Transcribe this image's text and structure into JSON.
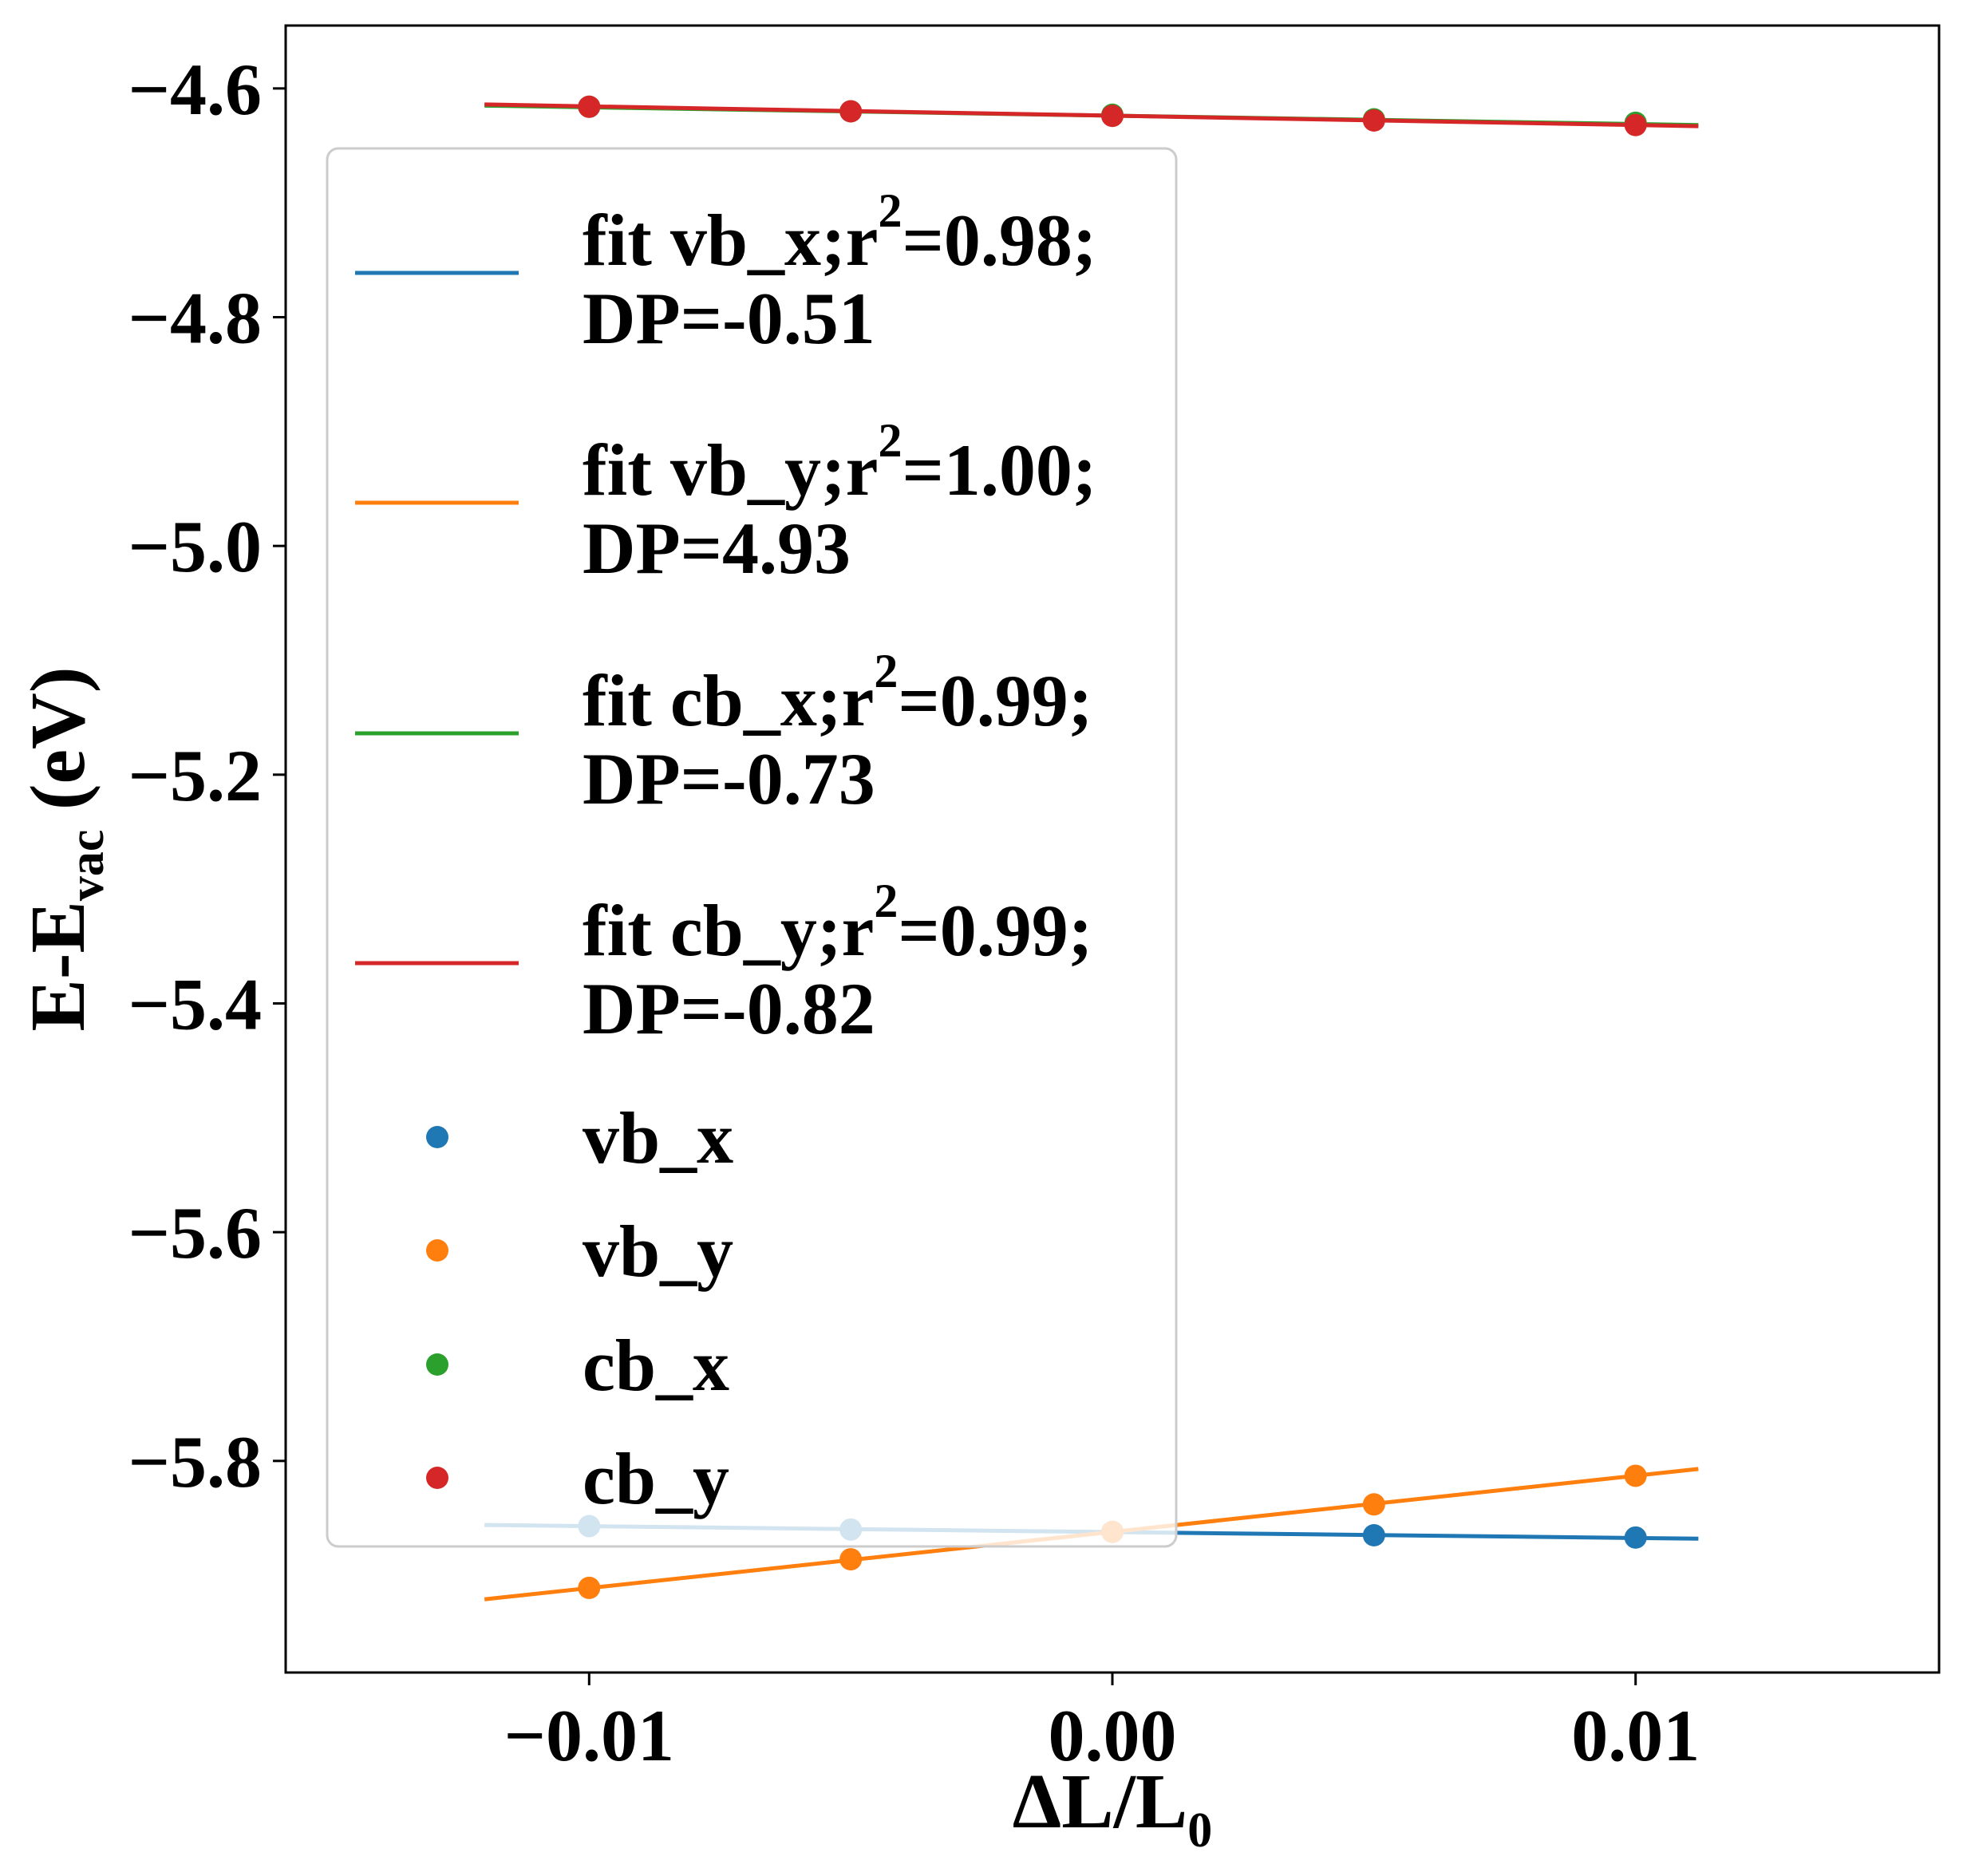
{
  "chart_data": {
    "type": "scatter",
    "xlabel": {
      "main": "ΔL/L",
      "sub": "0"
    },
    "ylabel": {
      "main": "E-E",
      "sub": "vac",
      "tail": " (eV)"
    },
    "xlim": [
      -0.0158,
      0.0158
    ],
    "ylim": [
      -5.985,
      -4.545
    ],
    "xticks": [
      {
        "value": -0.01,
        "label": "−0.01"
      },
      {
        "value": 0.0,
        "label": "0.00"
      },
      {
        "value": 0.01,
        "label": "0.01"
      }
    ],
    "yticks": [
      {
        "value": -4.6,
        "label": "−4.6"
      },
      {
        "value": -4.8,
        "label": "−4.8"
      },
      {
        "value": -5.0,
        "label": "−5.0"
      },
      {
        "value": -5.2,
        "label": "−5.2"
      },
      {
        "value": -5.4,
        "label": "−5.4"
      },
      {
        "value": -5.6,
        "label": "−5.6"
      },
      {
        "value": -5.8,
        "label": "−5.8"
      }
    ],
    "grid": false,
    "legend_position": "upper left",
    "x": [
      -0.01,
      -0.005,
      0.0,
      0.005,
      0.01
    ],
    "series": [
      {
        "key": "vb_x",
        "color": "#1f77b4",
        "name": "vb_x",
        "fit_line1": "fit vb_x;r",
        "fit_sup": "2",
        "fit_line1_tail": "=0.98;",
        "fit_line2": "DP=-0.51",
        "values": [
          -5.857,
          -5.86,
          -5.862,
          -5.865,
          -5.867
        ],
        "fit": {
          "x": [
            -0.012,
            0.0112
          ],
          "y": [
            -5.856,
            -5.868
          ]
        }
      },
      {
        "key": "vb_y",
        "color": "#ff7f0e",
        "name": "vb_y",
        "fit_line1": "fit vb_y;r",
        "fit_sup": "2",
        "fit_line1_tail": "=1.00;",
        "fit_line2": "DP=4.93",
        "values": [
          -5.911,
          -5.886,
          -5.862,
          -5.838,
          -5.813
        ],
        "fit": {
          "x": [
            -0.012,
            0.0112
          ],
          "y": [
            -5.921,
            -5.807
          ]
        }
      },
      {
        "key": "cb_x",
        "color": "#2ca02c",
        "name": "cb_x",
        "fit_line1": "fit cb_x;r",
        "fit_sup": "2",
        "fit_line1_tail": "=0.99;",
        "fit_line2": "DP=-0.73",
        "values": [
          -4.616,
          -4.62,
          -4.623,
          -4.627,
          -4.63
        ],
        "fit": {
          "x": [
            -0.012,
            0.0112
          ],
          "y": [
            -4.615,
            -4.632
          ]
        }
      },
      {
        "key": "cb_y",
        "color": "#d62728",
        "name": "cb_y",
        "fit_line1": "fit cb_y;r",
        "fit_sup": "2",
        "fit_line1_tail": "=0.99;",
        "fit_line2": "DP=-0.82",
        "values": [
          -4.616,
          -4.62,
          -4.624,
          -4.628,
          -4.632
        ],
        "fit": {
          "x": [
            -0.012,
            0.0112
          ],
          "y": [
            -4.614,
            -4.633
          ]
        }
      }
    ]
  }
}
